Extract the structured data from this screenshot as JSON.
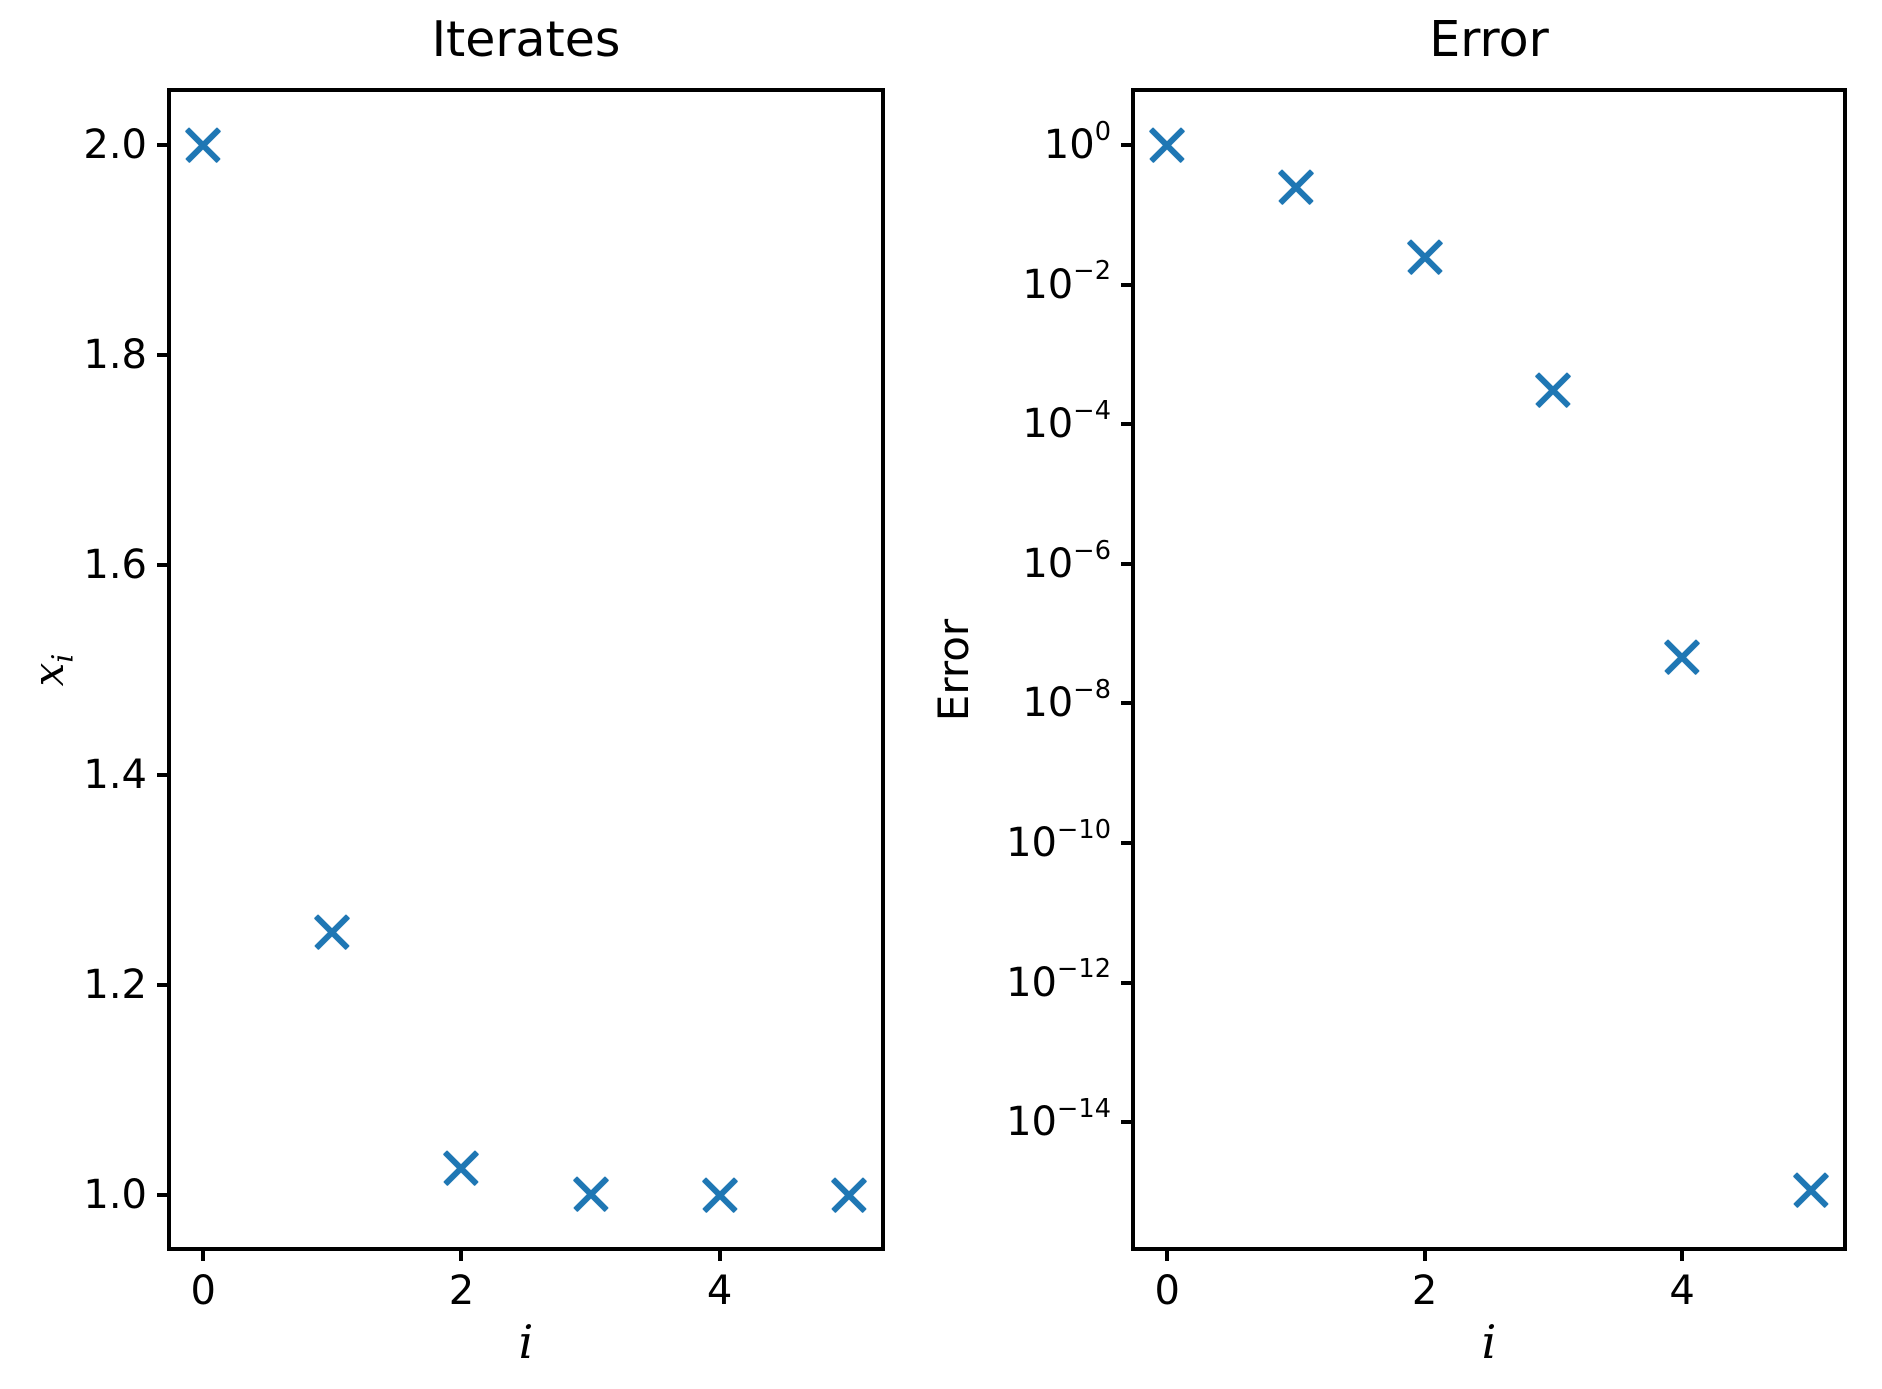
{
  "figure": {
    "background": "#ffffff",
    "axis_color": "#000000",
    "marker_color": "#1f77b4"
  },
  "chart_data": [
    {
      "type": "scatter",
      "title": "Iterates",
      "xlabel": "i",
      "ylabel": "x_i",
      "marker": "x",
      "color": "#1f77b4",
      "x": [
        0,
        1,
        2,
        3,
        4,
        5
      ],
      "y": [
        2.0,
        1.25,
        1.025,
        1.0003,
        1.0,
        1.0
      ],
      "xlim": [
        -0.25,
        5.25
      ],
      "ylim": [
        0.95,
        2.05
      ],
      "yscale": "linear",
      "grid": false,
      "legend": null,
      "xticks": [
        {
          "v": 0,
          "label": "0"
        },
        {
          "v": 2,
          "label": "2"
        },
        {
          "v": 4,
          "label": "4"
        }
      ],
      "yticks": [
        {
          "v": 2.0,
          "label": "2.0"
        },
        {
          "v": 1.8,
          "label": "1.8"
        },
        {
          "v": 1.6,
          "label": "1.6"
        },
        {
          "v": 1.4,
          "label": "1.4"
        },
        {
          "v": 1.2,
          "label": "1.2"
        },
        {
          "v": 1.0,
          "label": "1.0"
        }
      ]
    },
    {
      "type": "scatter",
      "title": "Error",
      "xlabel": "i",
      "ylabel": "Error",
      "marker": "x",
      "color": "#1f77b4",
      "x": [
        0,
        1,
        2,
        3,
        4,
        5
      ],
      "y": [
        1.0,
        0.25,
        0.025,
        0.000305,
        4.65e-08,
        1.08e-15
      ],
      "xlim": [
        -0.25,
        5.25
      ],
      "ylim_log10": [
        -15.79,
        0.76
      ],
      "yscale": "log",
      "grid": false,
      "legend": null,
      "xticks": [
        {
          "v": 0,
          "label": "0"
        },
        {
          "v": 2,
          "label": "2"
        },
        {
          "v": 4,
          "label": "4"
        }
      ],
      "yticks": [
        {
          "exp": 0
        },
        {
          "exp": -2
        },
        {
          "exp": -4
        },
        {
          "exp": -6
        },
        {
          "exp": -8
        },
        {
          "exp": -10
        },
        {
          "exp": -12
        },
        {
          "exp": -14
        }
      ]
    }
  ]
}
